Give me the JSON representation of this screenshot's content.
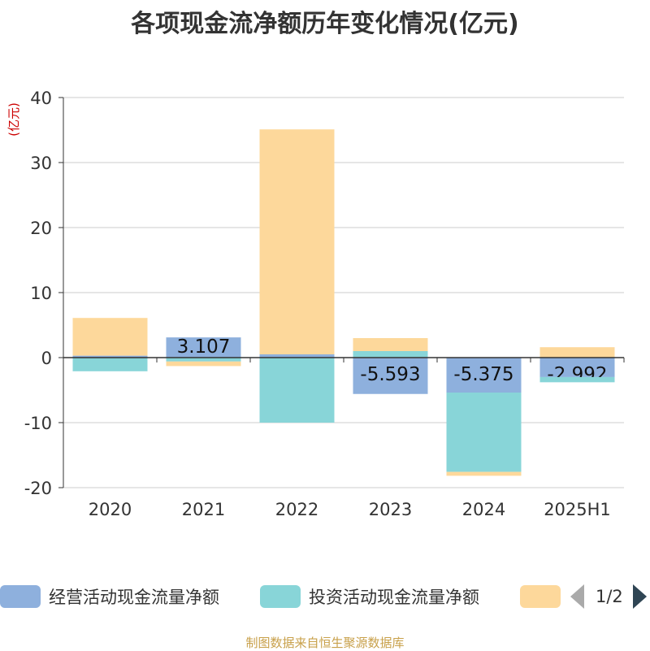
{
  "title": "各项现金流净额历年变化情况(亿元)",
  "source": "制图数据来自恒生聚源数据库",
  "pager": {
    "text": "1/2"
  },
  "chart_data": {
    "type": "bar",
    "stacked": true,
    "title": "各项现金流净额历年变化情况(亿元)",
    "ylabel": "(亿元)",
    "ylim": [
      -20,
      40
    ],
    "yticks": [
      -20,
      -10,
      0,
      10,
      20,
      30,
      40
    ],
    "grid": true,
    "legend_position": "bottom",
    "categories": [
      "2020",
      "2021",
      "2022",
      "2023",
      "2024",
      "2025H1"
    ],
    "series": [
      {
        "name": "经营活动现金流量净额",
        "color": "#8eb0dd",
        "values": [
          0.3,
          3.107,
          0.5,
          -5.593,
          -5.375,
          -2.992
        ],
        "labels": [
          "",
          "3.107",
          "",
          "-5.593",
          "-5.375",
          "-2.992"
        ]
      },
      {
        "name": "投资活动现金流量净额",
        "color": "#88d5d8",
        "values": [
          -2.1,
          -0.6,
          -10.0,
          1.0,
          -12.2,
          -0.8
        ],
        "labels": [
          "",
          "",
          "",
          "",
          "",
          ""
        ]
      },
      {
        "name": "",
        "color": "#fdd89b",
        "values": [
          5.8,
          -0.7,
          34.6,
          2.0,
          -0.6,
          1.6
        ],
        "labels": [
          "",
          "",
          "",
          "",
          "",
          ""
        ]
      }
    ]
  }
}
